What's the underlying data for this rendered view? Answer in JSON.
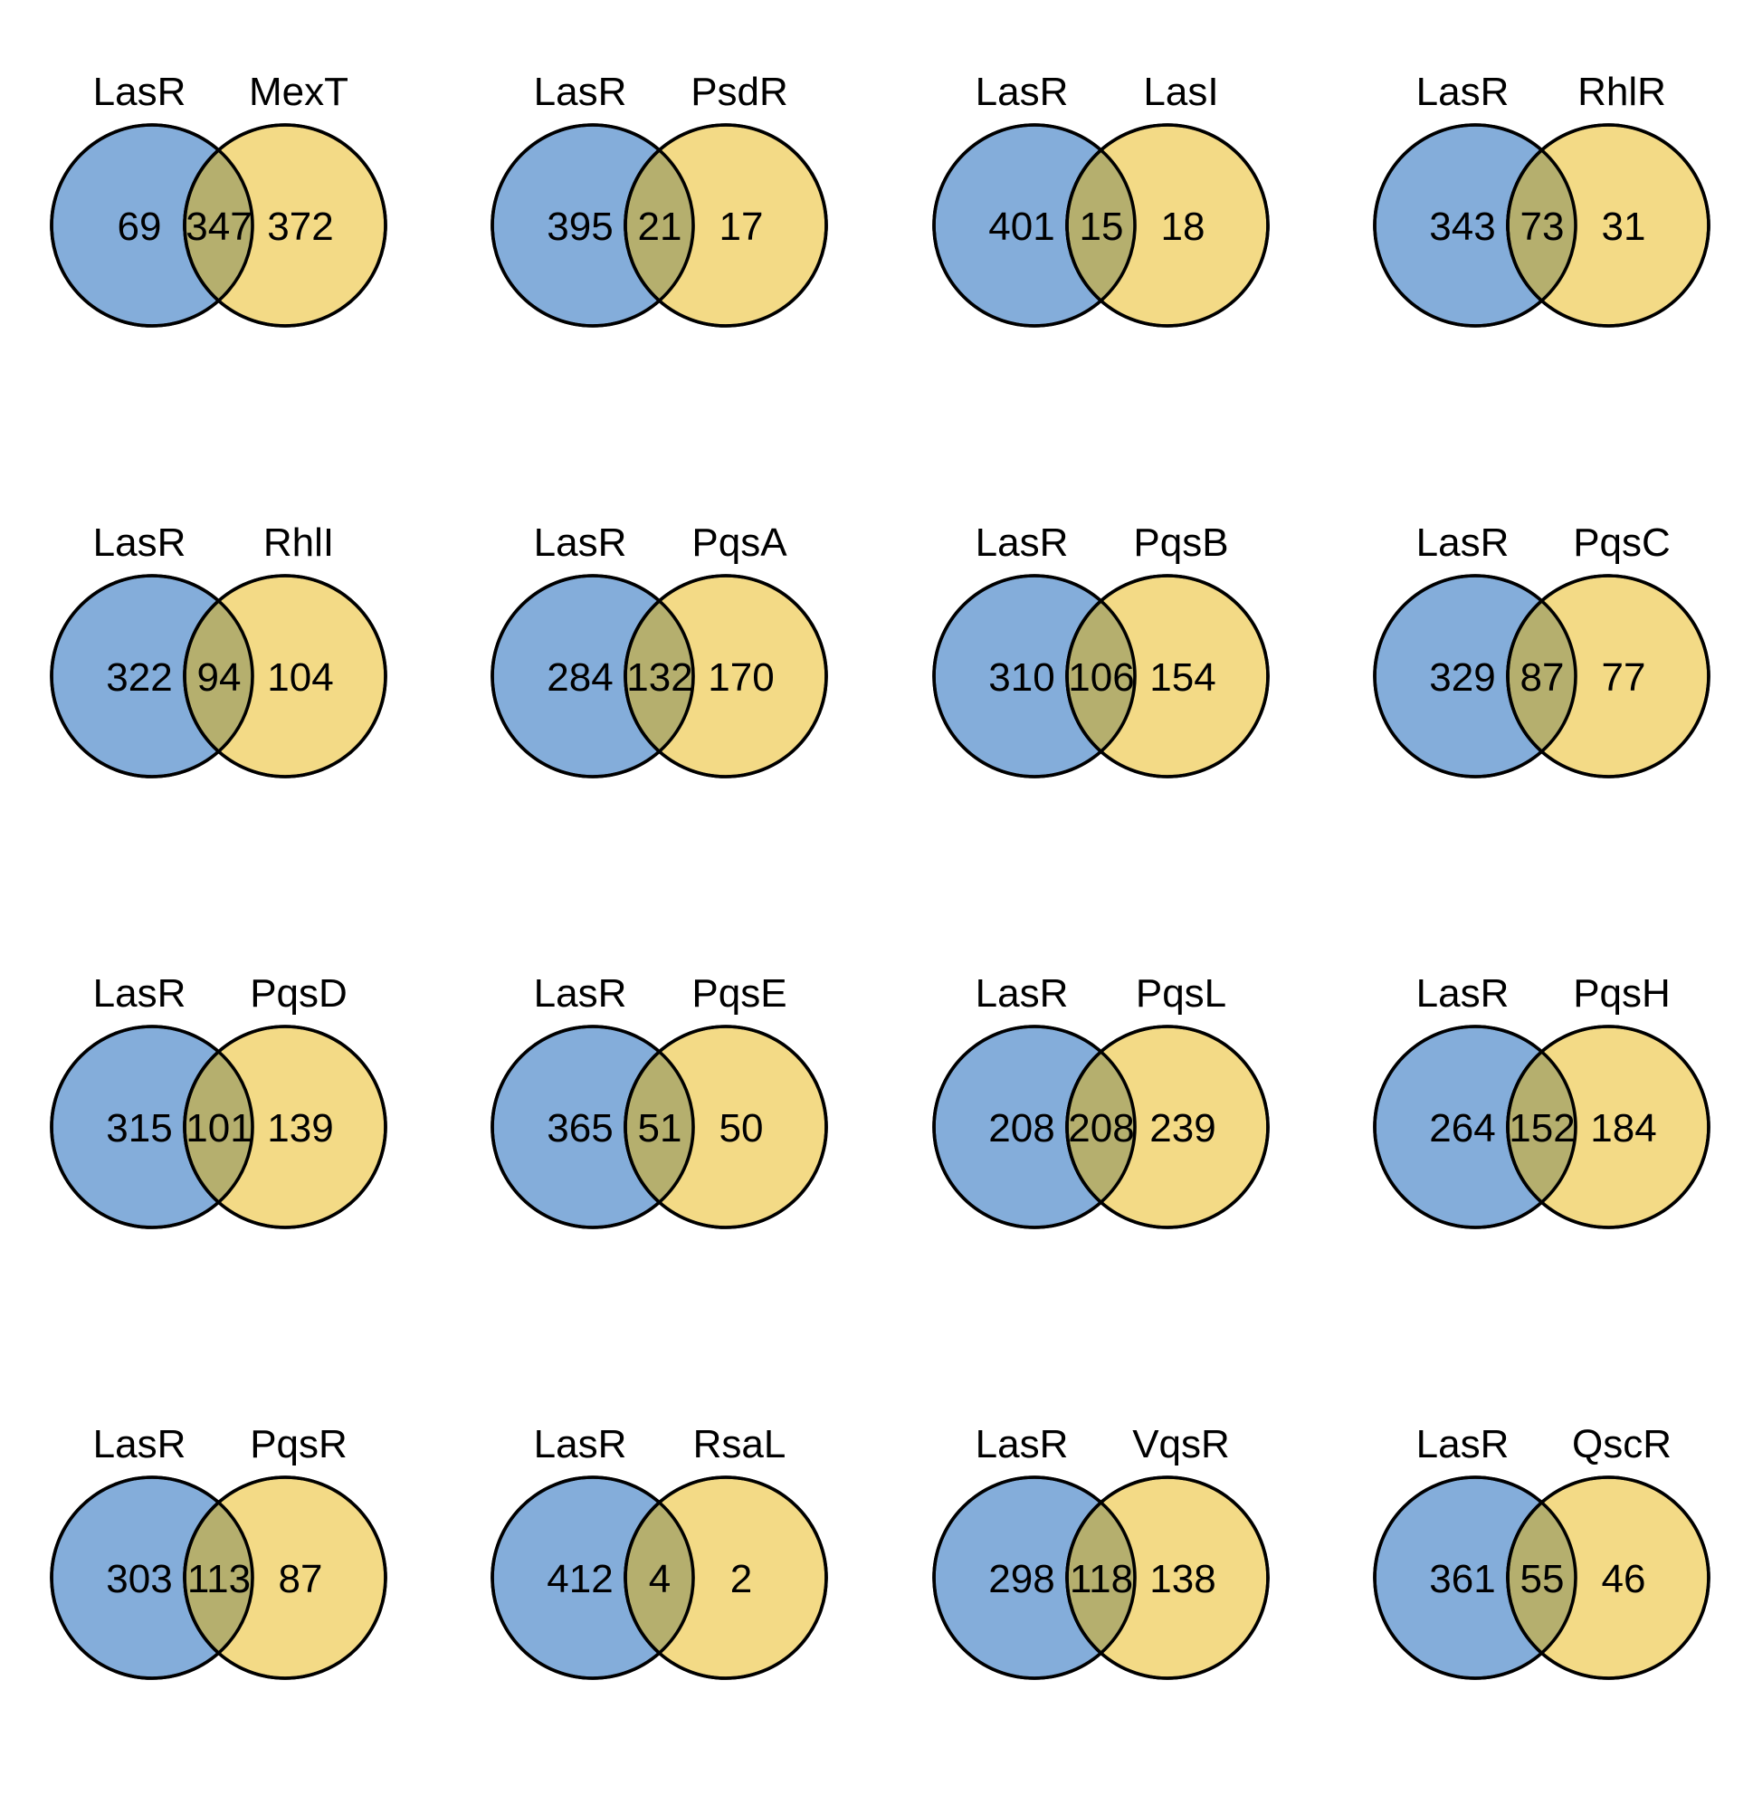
{
  "colors": {
    "left": "#84ADDA",
    "right": "#F3DA86",
    "overlap": "#B5AF6E",
    "stroke": "#000000"
  },
  "diagrams": [
    {
      "left_label": "LasR",
      "right_label": "MexT",
      "left_only": 69,
      "both": 347,
      "right_only": 372
    },
    {
      "left_label": "LasR",
      "right_label": "PsdR",
      "left_only": 395,
      "both": 21,
      "right_only": 17
    },
    {
      "left_label": "LasR",
      "right_label": "LasI",
      "left_only": 401,
      "both": 15,
      "right_only": 18
    },
    {
      "left_label": "LasR",
      "right_label": "RhlR",
      "left_only": 343,
      "both": 73,
      "right_only": 31
    },
    {
      "left_label": "LasR",
      "right_label": "RhlI",
      "left_only": 322,
      "both": 94,
      "right_only": 104
    },
    {
      "left_label": "LasR",
      "right_label": "PqsA",
      "left_only": 284,
      "both": 132,
      "right_only": 170
    },
    {
      "left_label": "LasR",
      "right_label": "PqsB",
      "left_only": 310,
      "both": 106,
      "right_only": 154
    },
    {
      "left_label": "LasR",
      "right_label": "PqsC",
      "left_only": 329,
      "both": 87,
      "right_only": 77
    },
    {
      "left_label": "LasR",
      "right_label": "PqsD",
      "left_only": 315,
      "both": 101,
      "right_only": 139
    },
    {
      "left_label": "LasR",
      "right_label": "PqsE",
      "left_only": 365,
      "both": 51,
      "right_only": 50
    },
    {
      "left_label": "LasR",
      "right_label": "PqsL",
      "left_only": 208,
      "both": 208,
      "right_only": 239
    },
    {
      "left_label": "LasR",
      "right_label": "PqsH",
      "left_only": 264,
      "both": 152,
      "right_only": 184
    },
    {
      "left_label": "LasR",
      "right_label": "PqsR",
      "left_only": 303,
      "both": 113,
      "right_only": 87
    },
    {
      "left_label": "LasR",
      "right_label": "RsaL",
      "left_only": 412,
      "both": 4,
      "right_only": 2
    },
    {
      "left_label": "LasR",
      "right_label": "VqsR",
      "left_only": 298,
      "both": 118,
      "right_only": 138
    },
    {
      "left_label": "LasR",
      "right_label": "QscR",
      "left_only": 361,
      "both": 55,
      "right_only": 46
    }
  ]
}
